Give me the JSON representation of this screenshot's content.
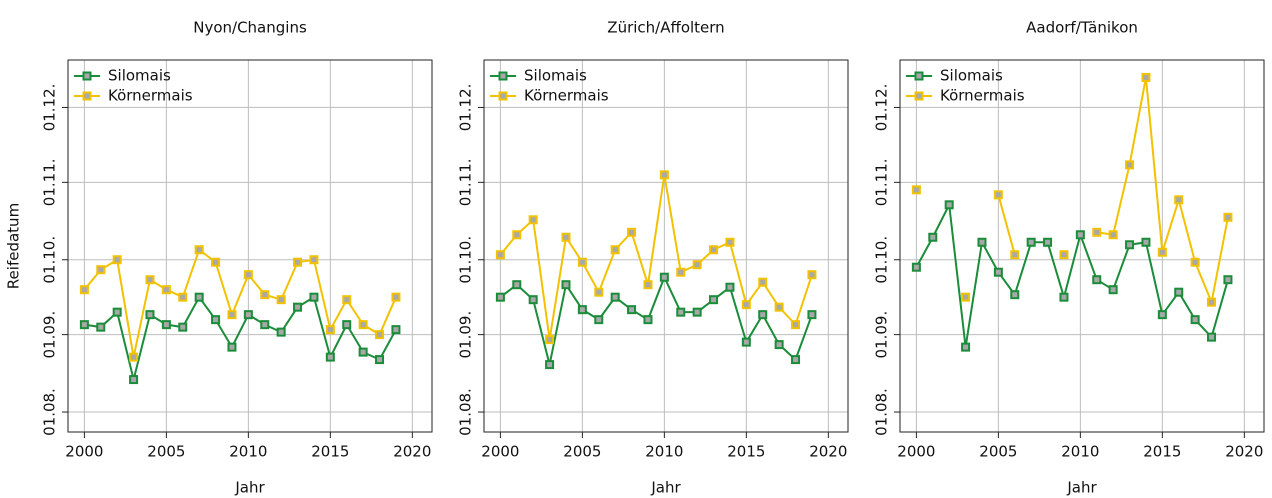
{
  "chart_data": [
    {
      "type": "line",
      "title": "Nyon/Changins",
      "x_label": "Jahr",
      "y_label": "Reifedatum",
      "x": [
        2000,
        2001,
        2002,
        2003,
        2004,
        2005,
        2006,
        2007,
        2008,
        2009,
        2010,
        2011,
        2012,
        2013,
        2014,
        2015,
        2016,
        2017,
        2018,
        2019
      ],
      "series": [
        {
          "name": "Silomais",
          "color": "#1a8c3a",
          "values": [
            248,
            247,
            253,
            226,
            252,
            248,
            247,
            259,
            250,
            239,
            252,
            248,
            245,
            255,
            259,
            235,
            248,
            237,
            234,
            246
          ]
        },
        {
          "name": "Körnermais",
          "color": "#f2c200",
          "values": [
            262,
            270,
            274,
            235,
            266,
            262,
            259,
            278,
            273,
            252,
            268,
            260,
            258,
            273,
            274,
            246,
            258,
            248,
            244,
            259
          ]
        }
      ],
      "xlim": [
        1999,
        2021.2
      ],
      "xticks": [
        2000,
        2005,
        2010,
        2015,
        2020
      ],
      "ylim": [
        205,
        354
      ],
      "yticks": [
        {
          "value": 213,
          "label": "01.08."
        },
        {
          "value": 244,
          "label": "01.09."
        },
        {
          "value": 274,
          "label": "01.10."
        },
        {
          "value": 305,
          "label": "01.11."
        },
        {
          "value": 335,
          "label": "01.12."
        }
      ],
      "grid": true,
      "legend": "upper left"
    },
    {
      "type": "line",
      "title": "Zürich/Affoltern",
      "x_label": "Jahr",
      "x": [
        2000,
        2001,
        2002,
        2003,
        2004,
        2005,
        2006,
        2007,
        2008,
        2009,
        2010,
        2011,
        2012,
        2013,
        2014,
        2015,
        2016,
        2017,
        2018,
        2019
      ],
      "series": [
        {
          "name": "Silomais",
          "color": "#1a8c3a",
          "values": [
            259,
            264,
            258,
            232,
            264,
            254,
            250,
            259,
            254,
            250,
            267,
            253,
            253,
            258,
            263,
            241,
            252,
            240,
            234,
            252
          ]
        },
        {
          "name": "Körnermais",
          "color": "#f2c200",
          "values": [
            276,
            284,
            290,
            242,
            283,
            273,
            261,
            278,
            285,
            264,
            308,
            269,
            272,
            278,
            281,
            256,
            265,
            255,
            248,
            268
          ]
        }
      ],
      "xlim": [
        1999,
        2021.2
      ],
      "xticks": [
        2000,
        2005,
        2010,
        2015,
        2020
      ],
      "ylim": [
        205,
        354
      ],
      "yticks": [
        {
          "value": 213,
          "label": "01.08."
        },
        {
          "value": 244,
          "label": "01.09."
        },
        {
          "value": 274,
          "label": "01.10."
        },
        {
          "value": 305,
          "label": "01.11."
        },
        {
          "value": 335,
          "label": "01.12."
        }
      ],
      "grid": true,
      "legend": "upper left"
    },
    {
      "type": "line",
      "title": "Aadorf/Tänikon",
      "x_label": "Jahr",
      "x": [
        2000,
        2001,
        2002,
        2003,
        2004,
        2005,
        2006,
        2007,
        2008,
        2009,
        2010,
        2011,
        2012,
        2013,
        2014,
        2015,
        2016,
        2017,
        2018,
        2019
      ],
      "series": [
        {
          "name": "Silomais",
          "color": "#1a8c3a",
          "values": [
            271,
            283,
            296,
            239,
            281,
            269,
            260,
            281,
            281,
            259,
            284,
            266,
            262,
            280,
            281,
            252,
            261,
            250,
            243,
            266
          ]
        },
        {
          "name": "Körnermais",
          "color": "#f2c200",
          "values": [
            302,
            null,
            null,
            259,
            null,
            300,
            276,
            null,
            null,
            276,
            null,
            285,
            284,
            312,
            347,
            277,
            298,
            273,
            257,
            291
          ]
        }
      ],
      "xlim": [
        1999,
        2021.2
      ],
      "xticks": [
        2000,
        2005,
        2010,
        2015,
        2020
      ],
      "ylim": [
        205,
        354
      ],
      "yticks": [
        {
          "value": 213,
          "label": "01.08."
        },
        {
          "value": 244,
          "label": "01.09."
        },
        {
          "value": 274,
          "label": "01.10."
        },
        {
          "value": 305,
          "label": "01.11."
        },
        {
          "value": 335,
          "label": "01.12."
        }
      ],
      "grid": true,
      "legend": "upper left"
    }
  ]
}
